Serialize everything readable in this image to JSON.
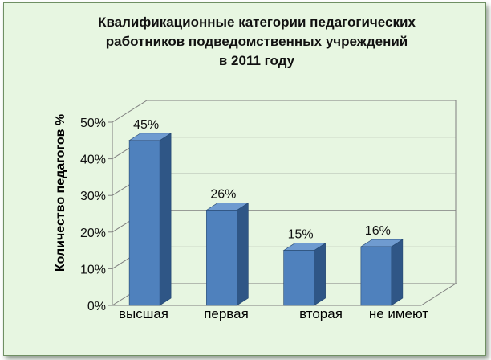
{
  "chart_data": {
    "type": "bar",
    "title_lines": [
      "Квалификационные категории педагогических",
      "работников подведомственных учреждений",
      "в 2011 году"
    ],
    "xlabel": "",
    "ylabel": "Количество педагогов %",
    "categories": [
      "высшая",
      "первая",
      "вторая",
      "не имеют"
    ],
    "values": [
      45,
      26,
      15,
      16
    ],
    "data_labels": [
      "45%",
      "26%",
      "15%",
      "16%"
    ],
    "ylim": [
      0,
      50
    ],
    "yticks": [
      "0%",
      "10%",
      "20%",
      "30%",
      "40%",
      "50%"
    ],
    "grid": true,
    "style": "3d-column",
    "colors": {
      "bar_front": "#4f81bd",
      "bar_side": "#2f5686",
      "bar_top": "#6f9bd0",
      "background": "#e7f6e1",
      "grid": "#7f7f7f"
    }
  }
}
